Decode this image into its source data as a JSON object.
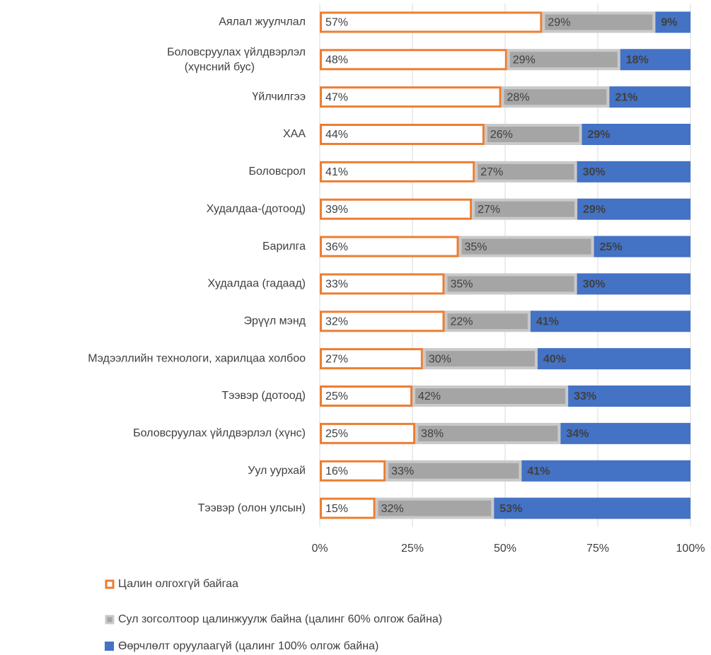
{
  "chart_data": {
    "type": "bar",
    "orientation": "horizontal",
    "stacking": "percent",
    "categories": [
      "Аялал жуулчлал",
      "Боловсруулах үйлдвэрлэл (хүнсний бус)",
      "Үйлчилгээ",
      "ХАА",
      "Боловсрол",
      "Худалдаа-(дотоод)",
      "Барилга",
      "Худалдаа (гадаад)",
      "Эрүүл мэнд",
      "Мэдээллийн технологи, харилцаа холбоо",
      "Тээвэр (дотоод)",
      "Боловсруулах үйлдвэрлэл (хүнс)",
      "Уул уурхай",
      "Тээвэр (олон улсын)"
    ],
    "series": [
      {
        "name": "Цалин олгохгүй байгаа",
        "color": "#ed7d31",
        "values": [
          57,
          48,
          47,
          44,
          41,
          39,
          36,
          33,
          32,
          27,
          25,
          25,
          16,
          15
        ],
        "value_labels": [
          "57%",
          "48%",
          "47%",
          "44%",
          "41%",
          "39%",
          "36%",
          "33%",
          "32%",
          "27%",
          "25%",
          "25%",
          "16%",
          "15%"
        ]
      },
      {
        "name": "Сул зогсолтоор цалинжуулж байна (цалинг 60% олгож байна)",
        "color": "#a5a5a5",
        "values": [
          29,
          29,
          28,
          26,
          27,
          27,
          35,
          35,
          22,
          30,
          42,
          38,
          33,
          32
        ],
        "value_labels": [
          "29%",
          "29%",
          "28%",
          "26%",
          "27%",
          "27%",
          "35%",
          "35%",
          "22%",
          "30%",
          "42%",
          "38%",
          "33%",
          "32%"
        ]
      },
      {
        "name": "Өөрчлөлт оруулаагүй (цалинг 100% олгож байна)",
        "color": "#4472c4",
        "values": [
          9,
          18,
          21,
          29,
          30,
          29,
          25,
          30,
          41,
          40,
          33,
          34,
          41,
          53
        ],
        "value_labels": [
          "9%",
          "18%",
          "21%",
          "29%",
          "30%",
          "29%",
          "25%",
          "30%",
          "41%",
          "40%",
          "33%",
          "34%",
          "41%",
          "53%"
        ]
      }
    ],
    "xlim": [
      0,
      100
    ],
    "xticks": [
      {
        "value": 0,
        "label": "0%"
      },
      {
        "value": 25,
        "label": "25%"
      },
      {
        "value": 50,
        "label": "50%"
      },
      {
        "value": 75,
        "label": "75%"
      },
      {
        "value": 100,
        "label": "100%"
      }
    ],
    "grid": true,
    "legend": "bottom"
  }
}
